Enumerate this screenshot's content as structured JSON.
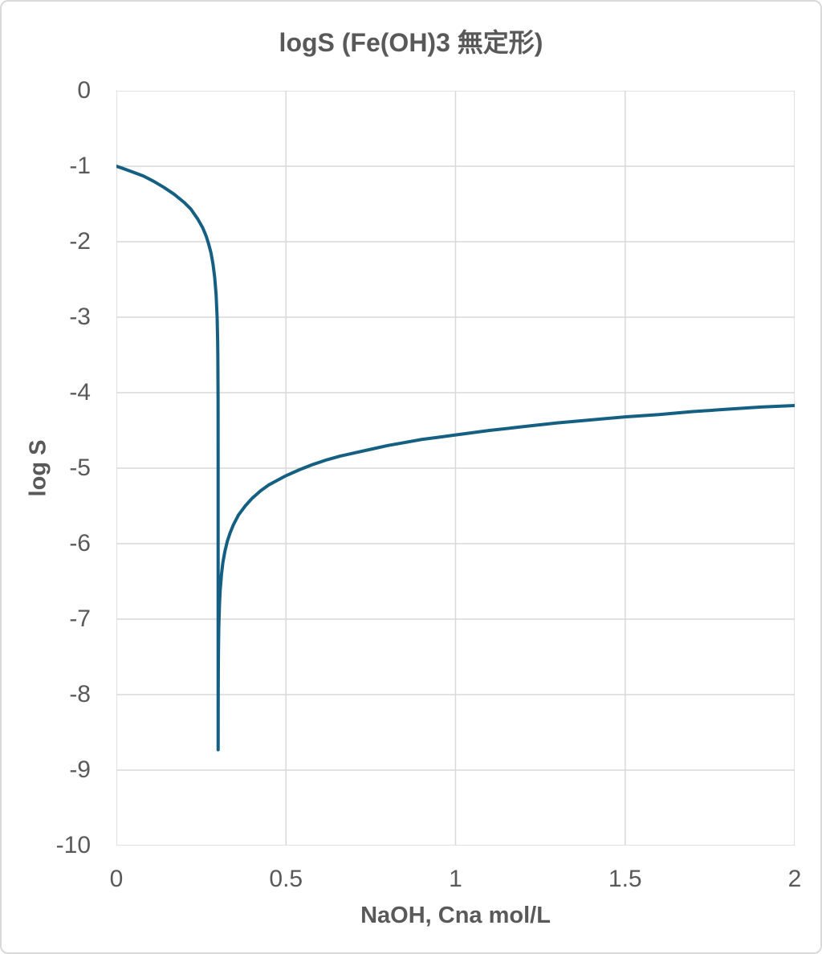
{
  "chart_data": {
    "type": "line",
    "title": "logS (Fe(OH)3 無定形)",
    "xlabel": "NaOH, Cna mol/L",
    "ylabel": "log S",
    "xlim": [
      0,
      2
    ],
    "ylim": [
      -10,
      0
    ],
    "xticks": [
      0,
      0.5,
      1,
      1.5,
      2
    ],
    "xtick_labels": [
      "0",
      "0.5",
      "1",
      "1.5",
      "2"
    ],
    "yticks": [
      0,
      -1,
      -2,
      -3,
      -4,
      -5,
      -6,
      -7,
      -8,
      -9,
      -10
    ],
    "ytick_labels": [
      "0",
      "-1",
      "-2",
      "-3",
      "-4",
      "-5",
      "-6",
      "-7",
      "-8",
      "-9",
      "-10"
    ],
    "grid": true,
    "legend": "none",
    "line_color": "#156082",
    "gridline_color": "#D9D9D9",
    "text_color": "#595959",
    "series": [
      {
        "name": "logS",
        "points": [
          [
            0,
            -1.0
          ],
          [
            0.02,
            -1.03
          ],
          [
            0.05,
            -1.08
          ],
          [
            0.08,
            -1.13
          ],
          [
            0.11,
            -1.2
          ],
          [
            0.14,
            -1.28
          ],
          [
            0.17,
            -1.37
          ],
          [
            0.2,
            -1.48
          ],
          [
            0.22,
            -1.57
          ],
          [
            0.24,
            -1.7
          ],
          [
            0.255,
            -1.82
          ],
          [
            0.265,
            -1.93
          ],
          [
            0.272,
            -2.03
          ],
          [
            0.279,
            -2.15
          ],
          [
            0.285,
            -2.3
          ],
          [
            0.29,
            -2.48
          ],
          [
            0.294,
            -2.7
          ],
          [
            0.297,
            -3.0
          ],
          [
            0.2985,
            -3.3
          ],
          [
            0.2991,
            -3.52
          ],
          [
            0.2996,
            -3.92
          ],
          [
            0.2998,
            -4.1
          ],
          [
            0.2999,
            -4.4
          ],
          [
            0.29997,
            -5.0
          ],
          [
            0.3,
            -8.73
          ],
          [
            0.30004,
            -8.73
          ],
          [
            0.3001,
            -8.4
          ],
          [
            0.3002,
            -8.1
          ],
          [
            0.3004,
            -7.8
          ],
          [
            0.3007,
            -7.55
          ],
          [
            0.301,
            -7.4
          ],
          [
            0.302,
            -7.1
          ],
          [
            0.304,
            -6.8
          ],
          [
            0.306,
            -6.62
          ],
          [
            0.31,
            -6.4
          ],
          [
            0.314,
            -6.25
          ],
          [
            0.32,
            -6.1
          ],
          [
            0.327,
            -5.97
          ],
          [
            0.335,
            -5.86
          ],
          [
            0.345,
            -5.75
          ],
          [
            0.36,
            -5.62
          ],
          [
            0.38,
            -5.5
          ],
          [
            0.4,
            -5.4
          ],
          [
            0.425,
            -5.3
          ],
          [
            0.45,
            -5.22
          ],
          [
            0.475,
            -5.16
          ],
          [
            0.5,
            -5.1
          ],
          [
            0.54,
            -5.02
          ],
          [
            0.58,
            -4.95
          ],
          [
            0.62,
            -4.89
          ],
          [
            0.66,
            -4.84
          ],
          [
            0.7,
            -4.8
          ],
          [
            0.75,
            -4.75
          ],
          [
            0.8,
            -4.7
          ],
          [
            0.85,
            -4.66
          ],
          [
            0.9,
            -4.62
          ],
          [
            0.95,
            -4.59
          ],
          [
            1.0,
            -4.56
          ],
          [
            1.1,
            -4.5
          ],
          [
            1.2,
            -4.45
          ],
          [
            1.3,
            -4.4
          ],
          [
            1.4,
            -4.36
          ],
          [
            1.5,
            -4.32
          ],
          [
            1.6,
            -4.29
          ],
          [
            1.7,
            -4.25
          ],
          [
            1.8,
            -4.22
          ],
          [
            1.9,
            -4.19
          ],
          [
            2.0,
            -4.17
          ]
        ]
      }
    ]
  }
}
